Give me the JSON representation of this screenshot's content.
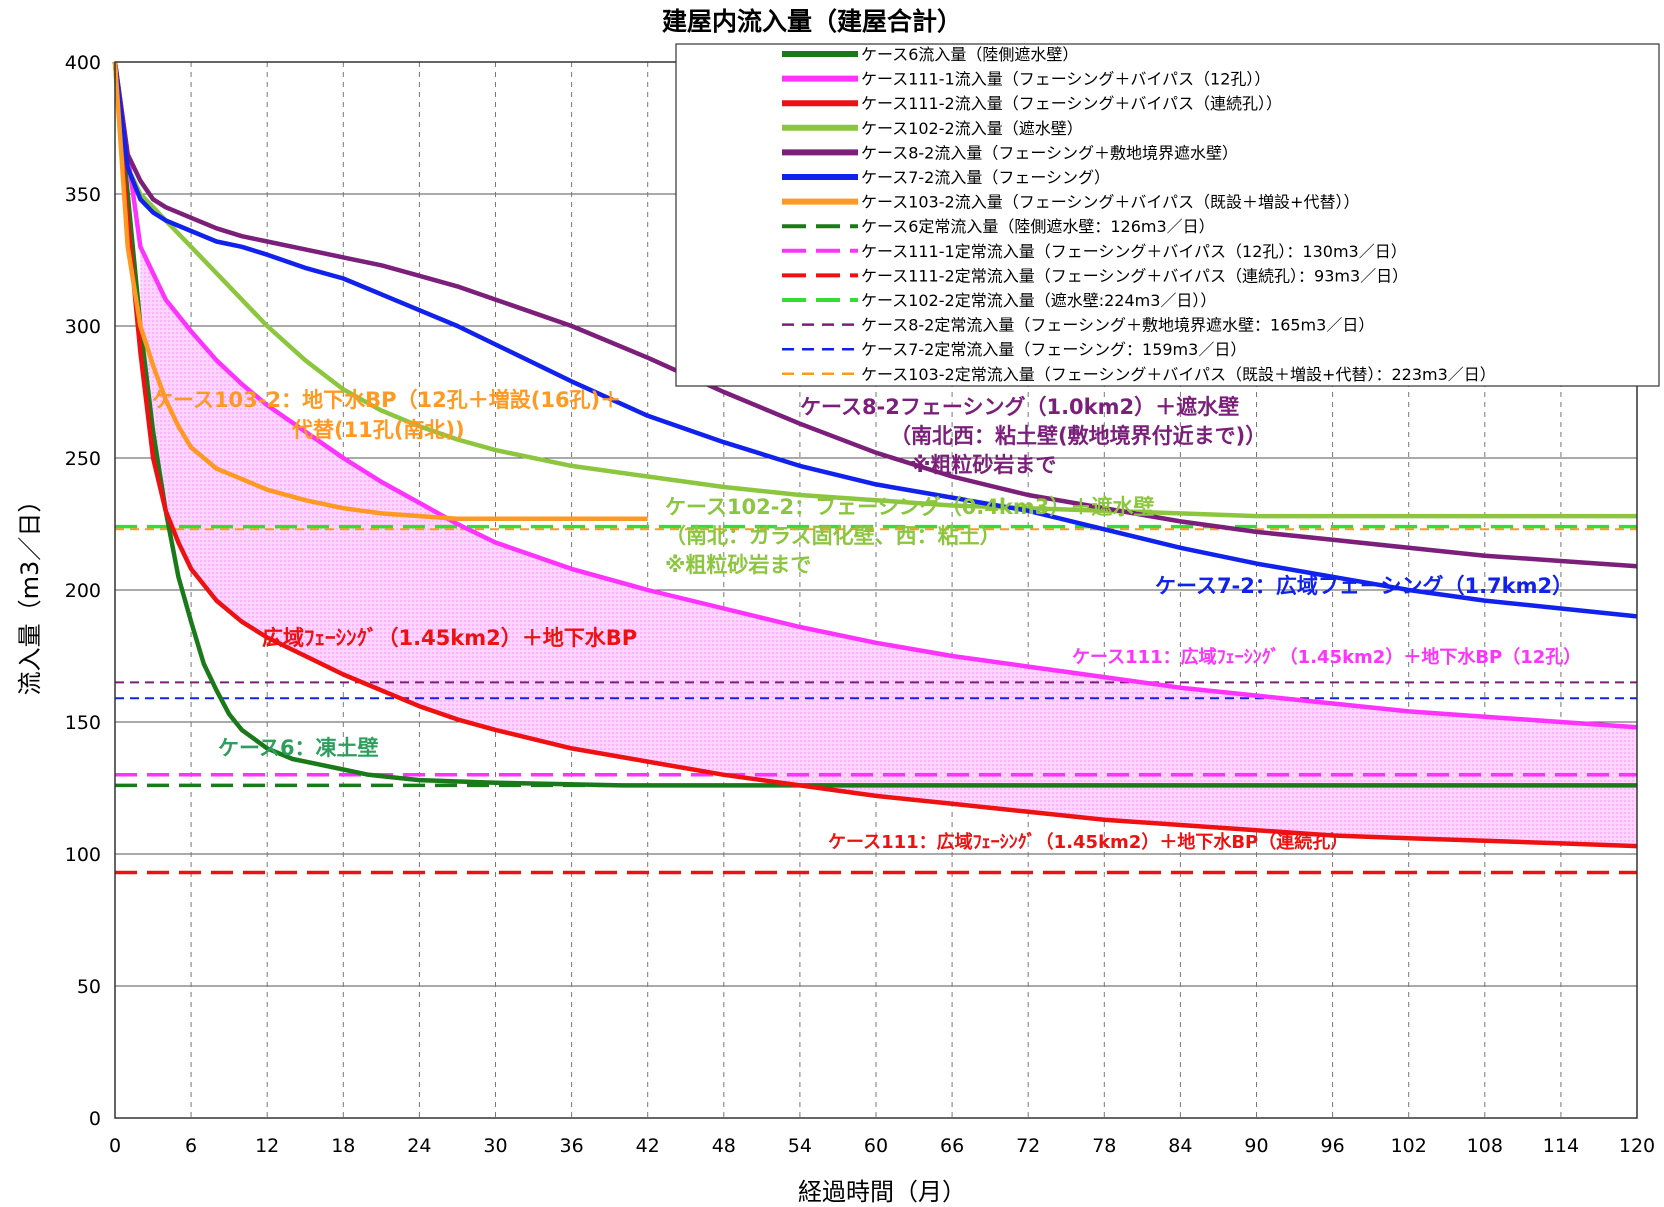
{
  "chart_data": {
    "type": "line",
    "title": "建屋内流入量（建屋合計）",
    "xlabel": "経過時間（月）",
    "ylabel": "流入量（m3／日）",
    "xlim": [
      0,
      120
    ],
    "ylim": [
      0,
      400
    ],
    "xticks": [
      0,
      6,
      12,
      18,
      24,
      30,
      36,
      42,
      48,
      54,
      60,
      66,
      72,
      78,
      84,
      90,
      96,
      102,
      108,
      114,
      120
    ],
    "yticks": [
      0,
      50,
      100,
      150,
      200,
      250,
      300,
      350,
      400
    ],
    "grid": true,
    "legend_position": "top-right",
    "series": [
      {
        "name": "ケース6流入量（陸側遮水壁）",
        "color": "#1a7a1a",
        "style": "solid",
        "x": [
          0,
          1,
          2,
          3,
          4,
          5,
          6,
          7,
          8,
          9,
          10,
          12,
          14,
          16,
          18,
          20,
          24,
          30,
          40,
          60,
          80,
          100,
          120
        ],
        "y": [
          400,
          350,
          300,
          260,
          230,
          205,
          188,
          172,
          162,
          153,
          147,
          140,
          136,
          134,
          132,
          130,
          128,
          127,
          126,
          126,
          126,
          126,
          126
        ]
      },
      {
        "name": "ケース111-1流入量（フェーシング＋バイパス（12孔））",
        "color": "#ff33ff",
        "style": "solid",
        "x": [
          0,
          2,
          4,
          6,
          8,
          10,
          12,
          15,
          18,
          21,
          24,
          27,
          30,
          36,
          42,
          48,
          54,
          60,
          66,
          72,
          78,
          84,
          90,
          96,
          102,
          108,
          114,
          120
        ],
        "y": [
          400,
          330,
          310,
          298,
          287,
          278,
          270,
          260,
          250,
          241,
          233,
          225,
          218,
          208,
          200,
          193,
          186,
          180,
          175,
          171,
          167,
          163,
          160,
          157,
          154,
          152,
          150,
          148
        ]
      },
      {
        "name": "ケース111-2流入量（フェーシング＋バイパス（連続孔））",
        "color": "#ee1111",
        "style": "solid",
        "x": [
          0,
          1,
          2,
          3,
          4,
          5,
          6,
          8,
          10,
          12,
          15,
          18,
          21,
          24,
          27,
          30,
          36,
          42,
          48,
          54,
          60,
          66,
          72,
          78,
          84,
          90,
          96,
          102,
          108,
          114,
          120
        ],
        "y": [
          400,
          340,
          290,
          250,
          230,
          218,
          208,
          196,
          188,
          182,
          175,
          168,
          162,
          156,
          151,
          147,
          140,
          135,
          130,
          126,
          122,
          119,
          116,
          113,
          111,
          109,
          107,
          106,
          105,
          104,
          103
        ]
      },
      {
        "name": "ケース102-2流入量（遮水壁）",
        "color": "#8cc63f",
        "style": "solid",
        "x": [
          0,
          1,
          2,
          3,
          4,
          6,
          8,
          10,
          12,
          15,
          18,
          21,
          24,
          27,
          30,
          36,
          42,
          48,
          54,
          60,
          66,
          72,
          78,
          84,
          90,
          96,
          102,
          108,
          114,
          120
        ],
        "y": [
          400,
          360,
          350,
          345,
          340,
          330,
          320,
          310,
          300,
          287,
          276,
          268,
          262,
          257,
          253,
          247,
          243,
          239,
          236,
          234,
          232,
          231,
          230,
          229,
          228,
          228,
          228,
          228,
          228,
          228
        ]
      },
      {
        "name": "ケース8-2流入量（フェーシング＋敷地境界遮水壁）",
        "color": "#7b1f7b",
        "style": "solid",
        "x": [
          0,
          1,
          2,
          3,
          4,
          6,
          8,
          10,
          12,
          15,
          18,
          21,
          24,
          27,
          30,
          36,
          42,
          48,
          54,
          60,
          66,
          72,
          78,
          84,
          90,
          96,
          102,
          108,
          114,
          120
        ],
        "y": [
          400,
          365,
          355,
          348,
          345,
          341,
          337,
          334,
          332,
          329,
          326,
          323,
          319,
          315,
          310,
          300,
          288,
          275,
          263,
          252,
          243,
          236,
          231,
          226,
          222,
          219,
          216,
          213,
          211,
          209
        ]
      },
      {
        "name": "ケース7-2流入量（フェーシング）",
        "color": "#1122ee",
        "style": "solid",
        "x": [
          0,
          1,
          2,
          3,
          4,
          6,
          8,
          10,
          12,
          15,
          18,
          21,
          24,
          27,
          30,
          36,
          42,
          48,
          54,
          60,
          66,
          72,
          78,
          84,
          90,
          96,
          102,
          108,
          114,
          120
        ],
        "y": [
          400,
          360,
          348,
          343,
          340,
          336,
          332,
          330,
          327,
          322,
          318,
          312,
          306,
          300,
          293,
          279,
          266,
          256,
          247,
          240,
          235,
          230,
          223,
          216,
          210,
          205,
          200,
          196,
          193,
          190
        ]
      },
      {
        "name": "ケース103-2流入量（フェーシング＋バイパス（既設＋増設+代替））",
        "color": "#ff9922",
        "style": "solid",
        "x": [
          0,
          1,
          2,
          3,
          4,
          5,
          6,
          8,
          10,
          12,
          15,
          18,
          21,
          24,
          27,
          30,
          36,
          42
        ],
        "y": [
          400,
          330,
          300,
          285,
          272,
          262,
          254,
          246,
          242,
          238,
          234,
          231,
          229,
          228,
          227,
          227,
          227,
          227
        ]
      },
      {
        "name": "ケース6定常流入量（陸側遮水壁：126m3／日）",
        "color": "#1a7a1a",
        "style": "dash-long",
        "constant": 126
      },
      {
        "name": "ケース111-1定常流入量（フェーシング＋バイパス（12孔）：130m3／日）",
        "color": "#ff33ff",
        "style": "dash-long",
        "constant": 130
      },
      {
        "name": "ケース111-2定常流入量（フェーシング＋バイパス（連続孔）：93m3／日）",
        "color": "#ee1111",
        "style": "dash-long",
        "constant": 93
      },
      {
        "name": "ケース102-2定常流入量（遮水壁:224m3／日））",
        "color": "#33dd33",
        "style": "dash-long",
        "constant": 224
      },
      {
        "name": "ケース8-2定常流入量（フェーシング＋敷地境界遮水壁：165m3／日）",
        "color": "#7b1f7b",
        "style": "dash-short",
        "constant": 165
      },
      {
        "name": "ケース7-2定常流入量（フェーシング：159m3／日）",
        "color": "#1122ee",
        "style": "dash-short",
        "constant": 159
      },
      {
        "name": "ケース103-2定常流入量（フェーシング＋バイパス（既設＋増設+代替）：223m3／日）",
        "color": "#ff9922",
        "style": "dash-short",
        "constant": 223
      }
    ],
    "shaded_band": {
      "color": "#ffb3ff",
      "between": [
        "ケース111-1流入量（フェーシング＋バイパス（12孔））",
        "ケース111-2流入量（フェーシング＋バイパス（連続孔））"
      ]
    },
    "annotations": [
      {
        "lines": [
          "ケース103-2：地下水BP（12孔＋増設(16孔)＋",
          "代替(11孔(南北))"
        ],
        "color": "#ff9922",
        "size": "normal"
      },
      {
        "lines": [
          "ケース8-2フェーシング（1.0km2）＋遮水壁",
          "（南北西：粘土壁(敷地境界付近まで)）",
          "※粗粒砂岩まで"
        ],
        "color": "#7b1f7b",
        "size": "normal"
      },
      {
        "lines": [
          "ケース102-2：フェーシング（0.4km3）＋遮水壁",
          "（南北：ガラス固化壁、西：粘土）",
          "※粗粒砂岩まで"
        ],
        "color": "#8cc63f",
        "size": "normal"
      },
      {
        "lines": [
          "ケース7-2：広域フェーシング（1.7km2）"
        ],
        "color": "#1122ee",
        "size": "normal"
      },
      {
        "lines": [
          "広域ﾌｪｰｼﾝｸﾞ（1.45km2）＋地下水BP"
        ],
        "color": "#ee1111",
        "size": "normal"
      },
      {
        "lines": [
          "ケース111：広域ﾌｪｰｼﾝｸﾞ（1.45km2）＋地下水BP（12孔）"
        ],
        "color": "#ff33ff",
        "size": "small"
      },
      {
        "lines": [
          "ケース6：凍土壁"
        ],
        "color": "#2e9e5e",
        "size": "normal"
      },
      {
        "lines": [
          "ケース111：広域ﾌｪｰｼﾝｸﾞ（1.45km2）＋地下水BP（連続孔）"
        ],
        "color": "#ee1111",
        "size": "small"
      }
    ]
  }
}
